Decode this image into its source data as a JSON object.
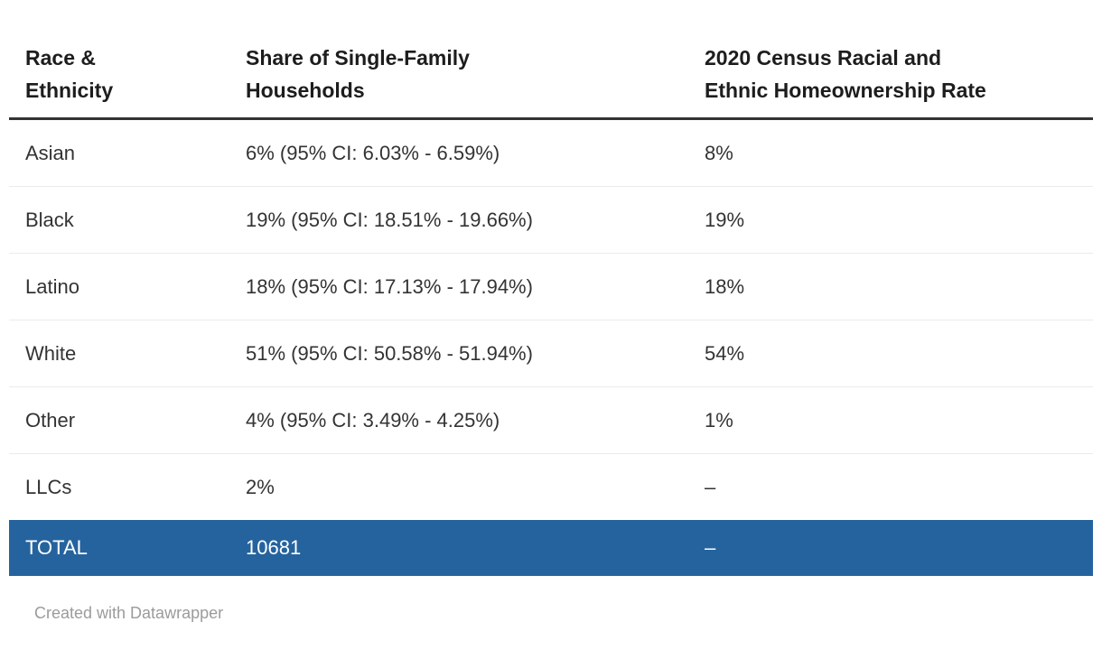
{
  "chart_data": {
    "type": "table",
    "columns": [
      "Race & Ethnicity",
      "Share of Single-Family Households",
      "2020 Census Racial and Ethnic Homeownership Rate"
    ],
    "rows": [
      [
        "Asian",
        "6% (95% CI: 6.03% - 6.59%)",
        "8%"
      ],
      [
        "Black",
        "19% (95% CI: 18.51% - 19.66%)",
        "19%"
      ],
      [
        "Latino",
        "18% (95% CI: 17.13% - 17.94%)",
        "18%"
      ],
      [
        "White",
        "51% (95% CI: 50.58% - 51.94%)",
        "54%"
      ],
      [
        "Other",
        "4% (95% CI: 3.49% - 4.25%)",
        "1%"
      ],
      [
        "LLCs",
        "2%",
        "–"
      ]
    ],
    "total": [
      "TOTAL",
      "10681",
      "–"
    ],
    "layout_hints": {
      "total_row_highlighted": true,
      "header_rule": "thick dark line under header",
      "row_dividers": "light gray lines between body rows"
    }
  },
  "table": {
    "header_labels": {
      "col1": "Race &\nEthnicity",
      "col2": "Share of Single-Family\nHouseholds",
      "col3": "2020 Census Racial and\nEthnic Homeownership Rate"
    }
  },
  "footer": {
    "credit": "Created with Datawrapper"
  },
  "colors": {
    "accent_blue": "#25639E",
    "header_rule": "#333333",
    "row_divider": "#ebebeb",
    "body_text": "#333333",
    "header_text": "#1d1d1d",
    "total_text": "#ffffff",
    "footer_text": "#9b9b9b"
  }
}
